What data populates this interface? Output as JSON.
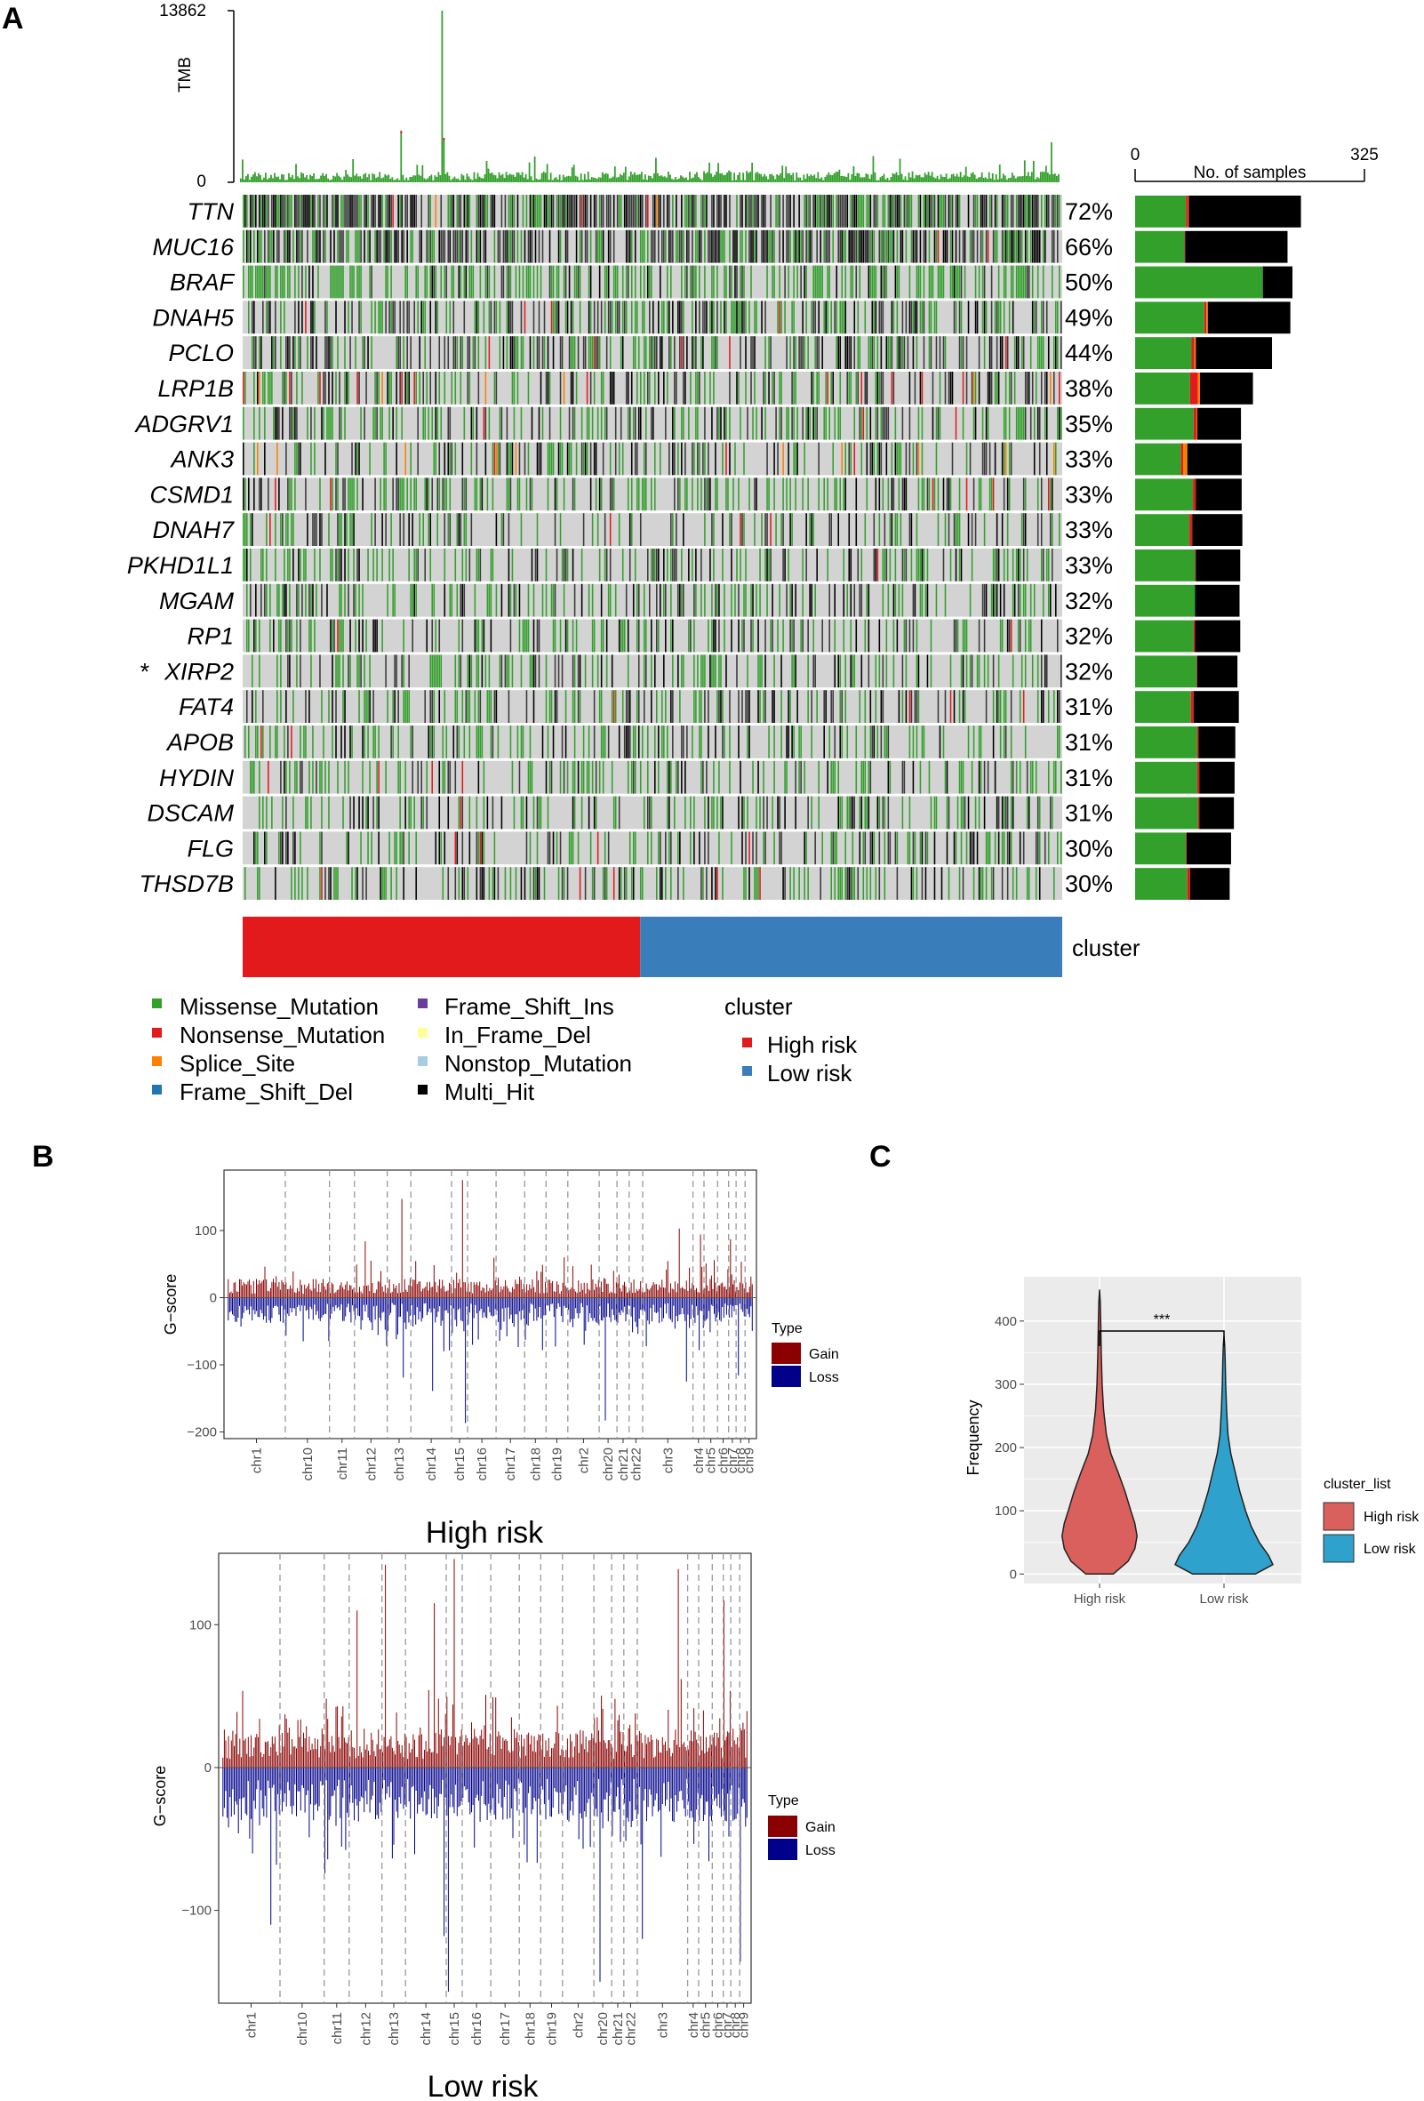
{
  "panels": {
    "a": "A",
    "b": "B",
    "c": "C"
  },
  "colors": {
    "missense": "#33a02c",
    "nonsense": "#e31a1c",
    "splice": "#ff7f00",
    "frame_shift_del": "#1f78b4",
    "frame_shift_ins": "#6a3d9a",
    "in_frame_del": "#ffff99",
    "nonstop": "#a6cee3",
    "multi_hit": "#000000",
    "cluster_high": "#e31a1c",
    "cluster_low": "#3a7dbb",
    "gain": "#8b0000",
    "loss": "#00008b",
    "violin_high": "#d9605c",
    "violin_low": "#2ea1cc",
    "gg_panel": "#ebebeb"
  },
  "chart_data": [
    {
      "type": "heatmap",
      "id": "oncoplot",
      "tmb": {
        "label": "TMB",
        "max_label": "13862",
        "min_label": "0"
      },
      "samples_axis": {
        "label": "No. of samples",
        "min_label": "0",
        "max_label": "325",
        "max": 325
      },
      "genes": [
        {
          "name": "TTN",
          "pct": "72%",
          "bar": {
            "missense": 72,
            "nonsense": 3,
            "splice": 1,
            "multi_hit": 159
          }
        },
        {
          "name": "MUC16",
          "pct": "66%",
          "bar": {
            "missense": 70,
            "nonsense": 1,
            "splice": 0,
            "multi_hit": 145
          }
        },
        {
          "name": "BRAF",
          "pct": "50%",
          "bar": {
            "missense": 181,
            "nonsense": 0,
            "splice": 0,
            "multi_hit": 42
          }
        },
        {
          "name": "DNAH5",
          "pct": "49%",
          "bar": {
            "missense": 98,
            "nonsense": 3,
            "splice": 2,
            "multi_hit": 117
          }
        },
        {
          "name": "PCLO",
          "pct": "44%",
          "bar": {
            "missense": 80,
            "nonsense": 4,
            "splice": 2,
            "multi_hit": 108
          }
        },
        {
          "name": "LRP1B",
          "pct": "38%",
          "bar": {
            "missense": 78,
            "nonsense": 11,
            "splice": 3,
            "multi_hit": 75
          }
        },
        {
          "name": "ADGRV1",
          "pct": "35%",
          "bar": {
            "missense": 83,
            "nonsense": 4,
            "splice": 1,
            "multi_hit": 62
          }
        },
        {
          "name": "ANK3",
          "pct": "33%",
          "bar": {
            "missense": 65,
            "nonsense": 3,
            "splice": 6,
            "multi_hit": 77
          }
        },
        {
          "name": "CSMD1",
          "pct": "33%",
          "bar": {
            "missense": 82,
            "nonsense": 4,
            "splice": 0,
            "multi_hit": 65
          }
        },
        {
          "name": "DNAH7",
          "pct": "33%",
          "bar": {
            "missense": 77,
            "nonsense": 4,
            "splice": 0,
            "multi_hit": 71
          }
        },
        {
          "name": "PKHD1L1",
          "pct": "33%",
          "bar": {
            "missense": 85,
            "nonsense": 1,
            "splice": 0,
            "multi_hit": 63
          }
        },
        {
          "name": "MGAM",
          "pct": "32%",
          "bar": {
            "missense": 85,
            "nonsense": 0,
            "splice": 0,
            "multi_hit": 63
          }
        },
        {
          "name": "RP1",
          "pct": "32%",
          "bar": {
            "missense": 83,
            "nonsense": 2,
            "splice": 0,
            "multi_hit": 64
          }
        },
        {
          "name": "XIRP2",
          "pct": "32%",
          "bar": {
            "missense": 87,
            "nonsense": 1,
            "splice": 0,
            "multi_hit": 57
          },
          "marker": "*"
        },
        {
          "name": "FAT4",
          "pct": "31%",
          "bar": {
            "missense": 79,
            "nonsense": 4,
            "splice": 0,
            "multi_hit": 64
          }
        },
        {
          "name": "APOB",
          "pct": "31%",
          "bar": {
            "missense": 88,
            "nonsense": 2,
            "splice": 0,
            "multi_hit": 52
          }
        },
        {
          "name": "HYDIN",
          "pct": "31%",
          "bar": {
            "missense": 88,
            "nonsense": 3,
            "splice": 0,
            "multi_hit": 50
          }
        },
        {
          "name": "DSCAM",
          "pct": "31%",
          "bar": {
            "missense": 89,
            "nonsense": 2,
            "splice": 0,
            "multi_hit": 49
          }
        },
        {
          "name": "FLG",
          "pct": "30%",
          "bar": {
            "missense": 72,
            "nonsense": 1,
            "splice": 0,
            "multi_hit": 63
          }
        },
        {
          "name": "THSD7B",
          "pct": "30%",
          "bar": {
            "missense": 74,
            "nonsense": 4,
            "splice": 0,
            "multi_hit": 56
          }
        }
      ],
      "cluster": {
        "label": "cluster",
        "high_risk_fraction": 0.485
      },
      "legend": {
        "variants": [
          "Missense_Mutation",
          "Nonsense_Mutation",
          "Splice_Site",
          "Frame_Shift_Del",
          "Frame_Shift_Ins",
          "In_Frame_Del",
          "Nonstop_Mutation",
          "Multi_Hit"
        ],
        "cluster_title": "cluster",
        "cluster_levels": [
          "High risk",
          "Low risk"
        ]
      }
    },
    {
      "type": "bar",
      "id": "cnv-high",
      "title": "High risk",
      "ylabel": "G−score",
      "ylim": [
        -210,
        190
      ],
      "yticks": [
        100,
        0,
        -100,
        -200
      ],
      "chromosomes": [
        "chr1",
        "chr10",
        "chr11",
        "chr12",
        "chr13",
        "chr14",
        "chr15",
        "chr16",
        "chr17",
        "chr18",
        "chr19",
        "chr2",
        "chr20",
        "chr21",
        "chr22",
        "chr3",
        "chr4",
        "chr5",
        "chr6",
        "chr7",
        "chr8",
        "chr9"
      ],
      "chrom_widths": [
        16.2,
        12.4,
        7.0,
        9.2,
        6.6,
        11.4,
        4.5,
        8.0,
        8.0,
        6.0,
        6.1,
        8.8,
        5.0,
        3.4,
        3.8,
        14.1,
        3.1,
        3.8,
        3.1,
        2.1,
        2.5,
        2.2
      ],
      "peaks": {
        "gain": [
          [
            "chr13",
            147
          ],
          [
            "chr15",
            175
          ],
          [
            "chr3",
            103
          ],
          [
            "chr4",
            94
          ],
          [
            "chr7",
            87
          ],
          [
            "chr12",
            84
          ]
        ],
        "loss": [
          [
            "chr15",
            -187
          ],
          [
            "chr20",
            -183
          ],
          [
            "chr14",
            -139
          ],
          [
            "chr8",
            -116
          ],
          [
            "chr3",
            -125
          ],
          [
            "chr13",
            -119
          ]
        ]
      },
      "legend": {
        "title": "Type",
        "items": [
          "Gain",
          "Loss"
        ]
      }
    },
    {
      "type": "bar",
      "id": "cnv-low",
      "title": "Low risk",
      "ylabel": "G−score",
      "ylim": [
        -165,
        150
      ],
      "yticks": [
        100,
        0,
        -100
      ],
      "chromosomes": [
        "chr1",
        "chr10",
        "chr11",
        "chr12",
        "chr13",
        "chr14",
        "chr15",
        "chr16",
        "chr17",
        "chr18",
        "chr19",
        "chr2",
        "chr20",
        "chr21",
        "chr22",
        "chr3",
        "chr4",
        "chr5",
        "chr6",
        "chr7",
        "chr8",
        "chr9"
      ],
      "chrom_widths": [
        16.2,
        12.4,
        7.0,
        9.2,
        6.6,
        11.4,
        4.5,
        8.0,
        8.0,
        6.0,
        6.1,
        8.8,
        5.0,
        3.4,
        3.8,
        14.1,
        3.1,
        3.8,
        3.1,
        2.1,
        2.5,
        2.2
      ],
      "peaks": {
        "gain": [
          [
            "chr13",
            142
          ],
          [
            "chr15",
            146
          ],
          [
            "chr3",
            139
          ],
          [
            "chr7",
            117
          ],
          [
            "chr12",
            110
          ],
          [
            "chr14",
            115
          ]
        ],
        "loss": [
          [
            "chr15",
            -157
          ],
          [
            "chr20",
            -150
          ],
          [
            "chr14",
            -118
          ],
          [
            "chr9",
            -136
          ],
          [
            "chr3",
            -120
          ],
          [
            "chr1",
            -110
          ]
        ]
      },
      "legend": {
        "title": "Type",
        "items": [
          "Gain",
          "Loss"
        ]
      }
    },
    {
      "type": "violin",
      "id": "tmb-violin",
      "categories": [
        "High risk",
        "Low risk"
      ],
      "ylabel": "Frequency",
      "ylim": [
        -15,
        470
      ],
      "yticks": [
        0,
        100,
        200,
        300,
        400
      ],
      "series": [
        {
          "name": "High risk",
          "max": 449,
          "density": [
            [
              0,
              0.24
            ],
            [
              20,
              0.5
            ],
            [
              40,
              0.62
            ],
            [
              60,
              0.66
            ],
            [
              80,
              0.62
            ],
            [
              100,
              0.55
            ],
            [
              130,
              0.45
            ],
            [
              160,
              0.33
            ],
            [
              190,
              0.2
            ],
            [
              220,
              0.12
            ],
            [
              260,
              0.07
            ],
            [
              300,
              0.045
            ],
            [
              350,
              0.03
            ],
            [
              400,
              0.02
            ],
            [
              430,
              0.012
            ],
            [
              449,
              0.0
            ]
          ]
        },
        {
          "name": "Low risk",
          "max": 376,
          "density": [
            [
              0,
              0.55
            ],
            [
              15,
              0.86
            ],
            [
              30,
              0.78
            ],
            [
              50,
              0.62
            ],
            [
              75,
              0.48
            ],
            [
              100,
              0.38
            ],
            [
              130,
              0.28
            ],
            [
              160,
              0.2
            ],
            [
              190,
              0.12
            ],
            [
              220,
              0.07
            ],
            [
              260,
              0.045
            ],
            [
              300,
              0.03
            ],
            [
              340,
              0.02
            ],
            [
              360,
              0.012
            ],
            [
              376,
              0.0
            ]
          ]
        }
      ],
      "significance": "***",
      "legend": {
        "title": "cluster_list",
        "items": [
          "High risk",
          "Low risk"
        ]
      }
    }
  ]
}
